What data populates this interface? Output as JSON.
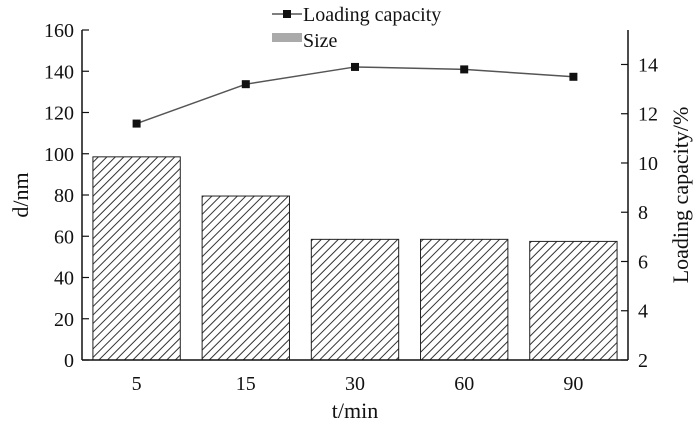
{
  "chart_data": {
    "type": "bar",
    "categories": [
      "5",
      "15",
      "30",
      "60",
      "90"
    ],
    "xlabel": "t/min",
    "ylabel": "d/nm",
    "y2label": "Loading capacity/%",
    "ylim": [
      0,
      160
    ],
    "yticks": [
      0,
      20,
      40,
      60,
      80,
      100,
      120,
      140,
      160
    ],
    "y2lim": [
      2,
      15.4
    ],
    "y2ticks": [
      2,
      4,
      6,
      8,
      10,
      12,
      14
    ],
    "series": [
      {
        "name": "Size",
        "kind": "bar",
        "axis": "left",
        "values": [
          98.5,
          79.5,
          58.5,
          58.5,
          57.5
        ]
      },
      {
        "name": "Loading capacity",
        "kind": "line",
        "axis": "right",
        "values": [
          11.6,
          13.2,
          13.9,
          13.8,
          13.5
        ]
      }
    ],
    "legend": [
      "Loading capacity",
      "Size"
    ],
    "legend_position": "top-center",
    "grid": false,
    "colors": {
      "bar_hatch": "#333333",
      "line": "#555555",
      "marker": "#111111",
      "legend_bar": "#aaaaaa"
    }
  }
}
